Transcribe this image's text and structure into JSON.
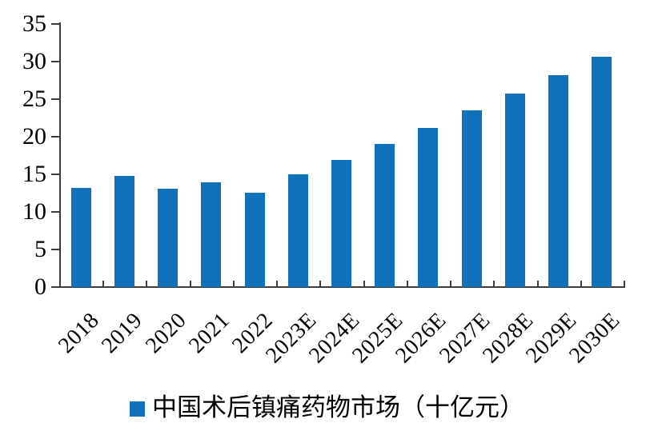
{
  "chart_data": {
    "type": "bar",
    "title": "",
    "categories": [
      "2018",
      "2019",
      "2020",
      "2021",
      "2022",
      "2023E",
      "2024E",
      "2025E",
      "2026E",
      "2027E",
      "2028E",
      "2029E",
      "2030E"
    ],
    "values": [
      13.2,
      14.8,
      13.1,
      13.9,
      12.6,
      15.0,
      16.9,
      19.0,
      21.2,
      23.5,
      25.7,
      28.2,
      30.6
    ],
    "legend_label": "中国术后镇痛药物市场（十亿元）",
    "xlabel": "",
    "ylabel": "",
    "ylim": [
      0,
      35
    ],
    "yticks": [
      0,
      5,
      10,
      15,
      20,
      25,
      30,
      35
    ],
    "grid": false,
    "legend_position": "bottom-center",
    "x_label_rotation_deg": -45,
    "bar_color": "#1072BB",
    "axis_color": "#3C3C3C",
    "text_color": "#000000",
    "background_color": "#FFFFFF"
  }
}
